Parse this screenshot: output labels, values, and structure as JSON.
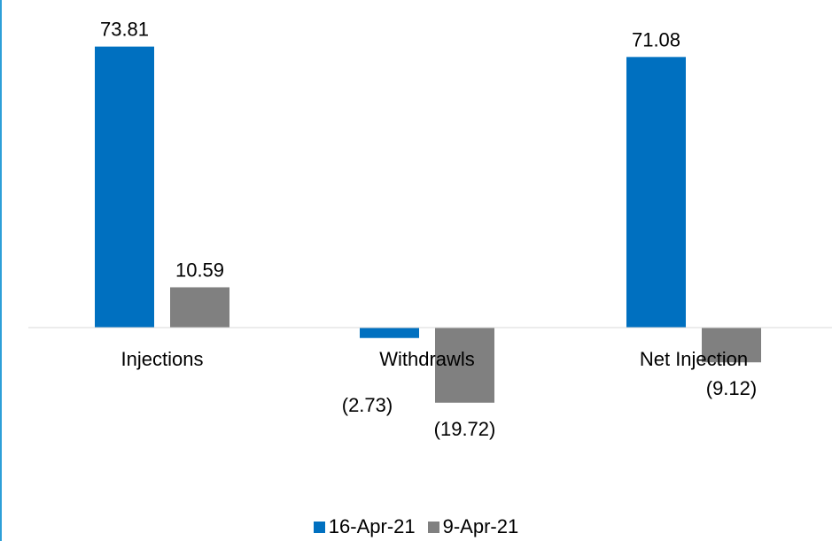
{
  "chart_data": {
    "type": "bar",
    "title": "",
    "xlabel": "",
    "ylabel": "",
    "categories": [
      "Injections",
      "Withdrawls",
      "Net Injection"
    ],
    "series": [
      {
        "name": "16-Apr-21",
        "color": "#0070c0",
        "values": [
          73.81,
          -2.73,
          71.08
        ],
        "labels": [
          "73.81",
          "(2.73)",
          "71.08"
        ]
      },
      {
        "name": "9-Apr-21",
        "color": "#808080",
        "values": [
          10.59,
          -19.72,
          -9.12
        ],
        "labels": [
          "10.59",
          "(19.72)",
          "(9.12)"
        ]
      }
    ],
    "ylim": [
      -40,
      80
    ],
    "grid": false,
    "legend": "bottom-center"
  }
}
